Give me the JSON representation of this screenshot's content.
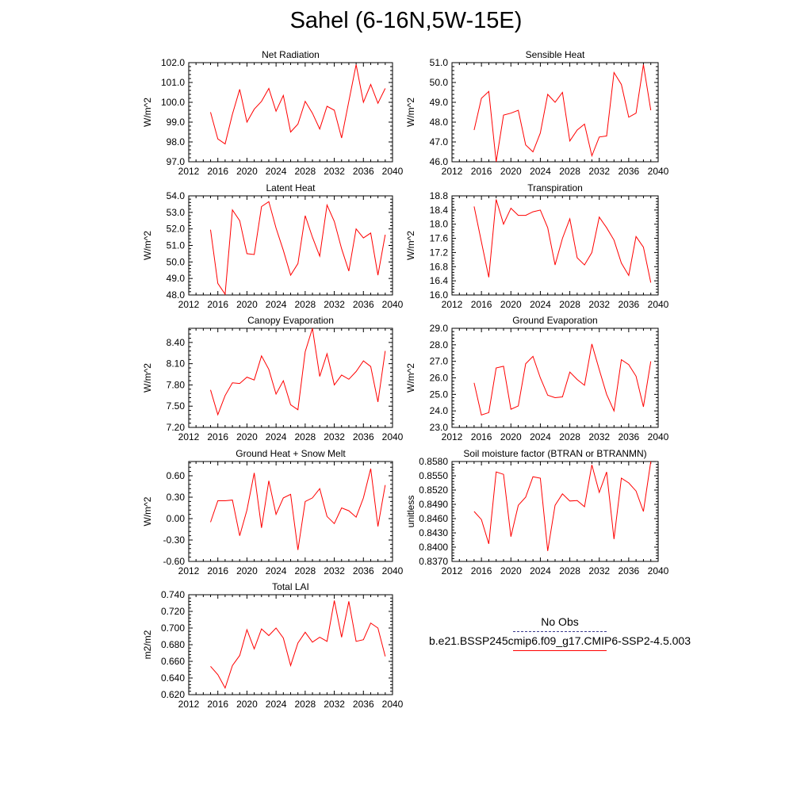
{
  "title": "Sahel (6-16N,5W-15E)",
  "colors": {
    "series": "#ff0000",
    "obs": "#3b3b8e",
    "axis": "#000000"
  },
  "legend": {
    "obs_label": "No Obs",
    "model_label": "b.e21.BSSP245cmip6.f09_g17.CMIP6-SSP2-4.5.003"
  },
  "chart_data": [
    {
      "type": "line",
      "title": "Net Radiation",
      "ylabel": "W/m^2",
      "xlim": [
        2012,
        2040
      ],
      "xticks": [
        2012,
        2016,
        2020,
        2024,
        2028,
        2032,
        2036,
        2040
      ],
      "ylim": [
        97.0,
        102.0
      ],
      "yticks": [
        "97.0",
        "98.0",
        "99.0",
        "100.0",
        "101.0",
        "102.0"
      ],
      "x": [
        2015,
        2016,
        2017,
        2018,
        2019,
        2020,
        2021,
        2022,
        2023,
        2024,
        2025,
        2026,
        2027,
        2028,
        2029,
        2030,
        2031,
        2032,
        2033,
        2034,
        2035,
        2036,
        2037,
        2038,
        2039
      ],
      "series": [
        {
          "values": [
            99.5,
            98.15,
            97.9,
            99.4,
            100.65,
            99.0,
            99.65,
            100.05,
            100.7,
            99.55,
            100.35,
            98.5,
            98.9,
            100.05,
            99.45,
            98.65,
            99.8,
            99.6,
            98.2,
            100.05,
            101.9,
            100.0,
            100.9,
            99.95,
            100.7
          ]
        }
      ]
    },
    {
      "type": "line",
      "title": "Sensible Heat",
      "ylabel": "W/m^2",
      "xlim": [
        2012,
        2040
      ],
      "xticks": [
        2012,
        2016,
        2020,
        2024,
        2028,
        2032,
        2036,
        2040
      ],
      "ylim": [
        46.0,
        51.0
      ],
      "yticks": [
        "46.0",
        "47.0",
        "48.0",
        "49.0",
        "50.0",
        "51.0"
      ],
      "x": [
        2015,
        2016,
        2017,
        2018,
        2019,
        2020,
        2021,
        2022,
        2023,
        2024,
        2025,
        2026,
        2027,
        2028,
        2029,
        2030,
        2031,
        2032,
        2033,
        2034,
        2035,
        2036,
        2037,
        2038,
        2039
      ],
      "series": [
        {
          "values": [
            47.6,
            49.2,
            49.55,
            46.0,
            48.35,
            48.45,
            48.6,
            46.85,
            46.5,
            47.45,
            49.4,
            49.0,
            49.5,
            47.05,
            47.6,
            47.9,
            46.3,
            47.25,
            47.3,
            50.5,
            49.9,
            48.25,
            48.45,
            50.9,
            48.6
          ]
        }
      ]
    },
    {
      "type": "line",
      "title": "Latent Heat",
      "ylabel": "W/m^2",
      "xlim": [
        2012,
        2040
      ],
      "xticks": [
        2012,
        2016,
        2020,
        2024,
        2028,
        2032,
        2036,
        2040
      ],
      "ylim": [
        48.0,
        54.0
      ],
      "yticks": [
        "48.0",
        "49.0",
        "50.0",
        "51.0",
        "52.0",
        "53.0",
        "54.0"
      ],
      "x": [
        2015,
        2016,
        2017,
        2018,
        2019,
        2020,
        2021,
        2022,
        2023,
        2024,
        2025,
        2026,
        2027,
        2028,
        2029,
        2030,
        2031,
        2032,
        2033,
        2034,
        2035,
        2036,
        2037,
        2038,
        2039
      ],
      "series": [
        {
          "values": [
            51.95,
            48.7,
            48.05,
            53.15,
            52.5,
            50.5,
            50.45,
            53.35,
            53.65,
            52.05,
            50.7,
            49.2,
            49.9,
            52.8,
            51.5,
            50.35,
            53.45,
            52.45,
            50.8,
            49.45,
            52.0,
            51.45,
            51.75,
            49.2,
            51.65
          ]
        }
      ]
    },
    {
      "type": "line",
      "title": "Transpiration",
      "ylabel": "W/m^2",
      "xlim": [
        2012,
        2040
      ],
      "xticks": [
        2012,
        2016,
        2020,
        2024,
        2028,
        2032,
        2036,
        2040
      ],
      "ylim": [
        16.0,
        18.8
      ],
      "yticks": [
        "16.0",
        "16.4",
        "16.8",
        "17.2",
        "17.6",
        "18.0",
        "18.4",
        "18.8"
      ],
      "x": [
        2015,
        2016,
        2017,
        2018,
        2019,
        2020,
        2021,
        2022,
        2023,
        2024,
        2025,
        2026,
        2027,
        2028,
        2029,
        2030,
        2031,
        2032,
        2033,
        2034,
        2035,
        2036,
        2037,
        2038,
        2039
      ],
      "series": [
        {
          "values": [
            18.5,
            17.5,
            16.5,
            18.7,
            18.0,
            18.45,
            18.25,
            18.25,
            18.35,
            18.4,
            17.9,
            16.85,
            17.6,
            18.15,
            17.05,
            16.85,
            17.2,
            18.2,
            17.9,
            17.55,
            16.9,
            16.55,
            17.65,
            17.35,
            16.35
          ]
        }
      ]
    },
    {
      "type": "line",
      "title": "Canopy Evaporation",
      "ylabel": "W/m^2",
      "xlim": [
        2012,
        2040
      ],
      "xticks": [
        2012,
        2016,
        2020,
        2024,
        2028,
        2032,
        2036,
        2040
      ],
      "ylim": [
        7.2,
        8.6
      ],
      "yticks": [
        "7.20",
        "7.50",
        "7.80",
        "8.10",
        "8.40"
      ],
      "x": [
        2015,
        2016,
        2017,
        2018,
        2019,
        2020,
        2021,
        2022,
        2023,
        2024,
        2025,
        2026,
        2027,
        2028,
        2029,
        2030,
        2031,
        2032,
        2033,
        2034,
        2035,
        2036,
        2037,
        2038,
        2039
      ],
      "series": [
        {
          "values": [
            7.73,
            7.38,
            7.65,
            7.83,
            7.82,
            7.91,
            7.87,
            8.21,
            8.02,
            7.67,
            7.86,
            7.52,
            7.45,
            8.27,
            8.6,
            7.92,
            8.24,
            7.8,
            7.94,
            7.88,
            7.99,
            8.14,
            8.06,
            7.56,
            8.28
          ]
        }
      ]
    },
    {
      "type": "line",
      "title": "Ground Evaporation",
      "ylabel": "W/m^2",
      "xlim": [
        2012,
        2040
      ],
      "xticks": [
        2012,
        2016,
        2020,
        2024,
        2028,
        2032,
        2036,
        2040
      ],
      "ylim": [
        23.0,
        29.0
      ],
      "yticks": [
        "23.0",
        "24.0",
        "25.0",
        "26.0",
        "27.0",
        "28.0",
        "29.0"
      ],
      "x": [
        2015,
        2016,
        2017,
        2018,
        2019,
        2020,
        2021,
        2022,
        2023,
        2024,
        2025,
        2026,
        2027,
        2028,
        2029,
        2030,
        2031,
        2032,
        2033,
        2034,
        2035,
        2036,
        2037,
        2038,
        2039
      ],
      "series": [
        {
          "values": [
            25.7,
            23.75,
            23.9,
            26.6,
            26.7,
            24.1,
            24.3,
            26.85,
            27.3,
            26.0,
            24.95,
            24.8,
            24.85,
            26.35,
            25.9,
            25.55,
            28.05,
            26.5,
            25.0,
            24.0,
            27.1,
            26.8,
            26.1,
            24.25,
            27.0
          ]
        }
      ]
    },
    {
      "type": "line",
      "title": "Ground Heat + Snow Melt",
      "ylabel": "W/m^2",
      "xlim": [
        2012,
        2040
      ],
      "xticks": [
        2012,
        2016,
        2020,
        2024,
        2028,
        2032,
        2036,
        2040
      ],
      "ylim": [
        -0.6,
        0.8
      ],
      "yticks": [
        "-0.60",
        "-0.30",
        "0.00",
        "0.30",
        "0.60"
      ],
      "x": [
        2015,
        2016,
        2017,
        2018,
        2019,
        2020,
        2021,
        2022,
        2023,
        2024,
        2025,
        2026,
        2027,
        2028,
        2029,
        2030,
        2031,
        2032,
        2033,
        2034,
        2035,
        2036,
        2037,
        2038,
        2039
      ],
      "series": [
        {
          "values": [
            -0.05,
            0.25,
            0.25,
            0.26,
            -0.24,
            0.12,
            0.64,
            -0.13,
            0.53,
            0.06,
            0.29,
            0.34,
            -0.44,
            0.24,
            0.29,
            0.42,
            0.03,
            -0.07,
            0.15,
            0.11,
            0.02,
            0.29,
            0.7,
            -0.11,
            0.47
          ]
        }
      ]
    },
    {
      "type": "line",
      "title": "Soil moisture factor (BTRAN or BTRANMN)",
      "ylabel": "unitless",
      "xlim": [
        2012,
        2040
      ],
      "xticks": [
        2012,
        2016,
        2020,
        2024,
        2028,
        2032,
        2036,
        2040
      ],
      "ylim": [
        0.837,
        0.858
      ],
      "yticks": [
        "0.8370",
        "0.8400",
        "0.8430",
        "0.8460",
        "0.8490",
        "0.8520",
        "0.8550",
        "0.8580"
      ],
      "x": [
        2015,
        2016,
        2017,
        2018,
        2019,
        2020,
        2021,
        2022,
        2023,
        2024,
        2025,
        2026,
        2027,
        2028,
        2029,
        2030,
        2031,
        2032,
        2033,
        2034,
        2035,
        2036,
        2037,
        2038,
        2039
      ],
      "series": [
        {
          "values": [
            0.8475,
            0.8458,
            0.8407,
            0.8558,
            0.8553,
            0.8422,
            0.8488,
            0.8505,
            0.8548,
            0.8545,
            0.8392,
            0.8488,
            0.8512,
            0.8497,
            0.8498,
            0.8485,
            0.8573,
            0.8515,
            0.8558,
            0.8417,
            0.8545,
            0.8535,
            0.8518,
            0.8475,
            0.858
          ]
        }
      ]
    },
    {
      "type": "line",
      "title": "Total LAI",
      "ylabel": "m2/m2",
      "xlim": [
        2012,
        2040
      ],
      "xticks": [
        2012,
        2016,
        2020,
        2024,
        2028,
        2032,
        2036,
        2040
      ],
      "ylim": [
        0.62,
        0.74
      ],
      "yticks": [
        "0.620",
        "0.640",
        "0.660",
        "0.680",
        "0.700",
        "0.720",
        "0.740"
      ],
      "x": [
        2015,
        2016,
        2017,
        2018,
        2019,
        2020,
        2021,
        2022,
        2023,
        2024,
        2025,
        2026,
        2027,
        2028,
        2029,
        2030,
        2031,
        2032,
        2033,
        2034,
        2035,
        2036,
        2037,
        2038,
        2039
      ],
      "series": [
        {
          "values": [
            0.654,
            0.644,
            0.628,
            0.655,
            0.667,
            0.698,
            0.675,
            0.699,
            0.691,
            0.7,
            0.688,
            0.655,
            0.682,
            0.695,
            0.683,
            0.689,
            0.684,
            0.733,
            0.689,
            0.732,
            0.684,
            0.686,
            0.706,
            0.7,
            0.666
          ]
        }
      ]
    }
  ]
}
